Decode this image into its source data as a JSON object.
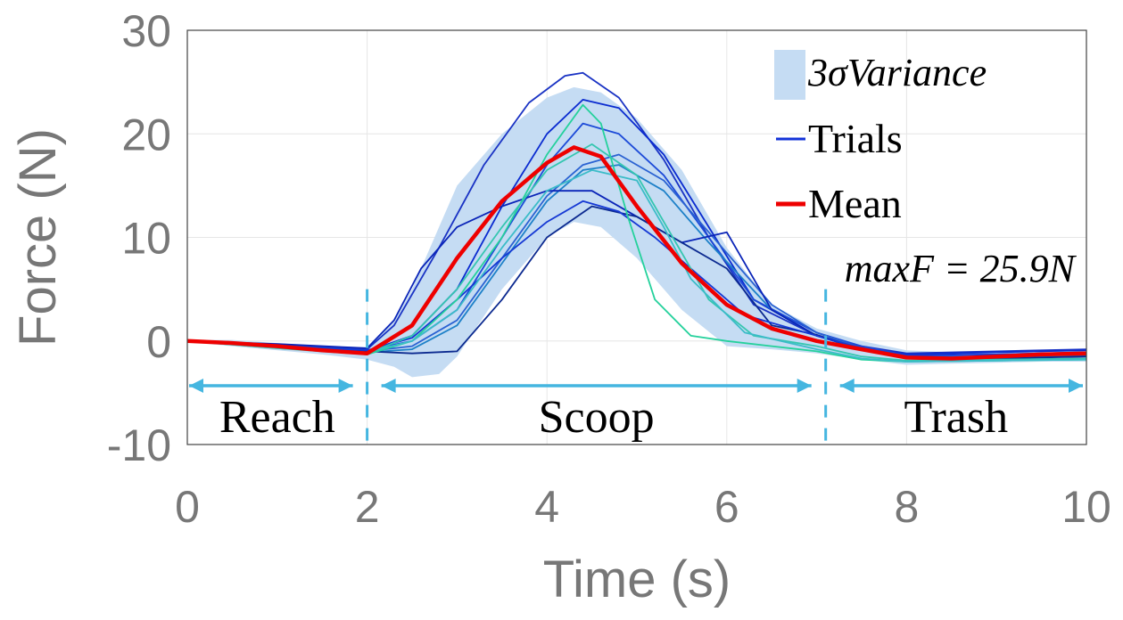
{
  "chart_data": {
    "type": "line",
    "xlabel": "Time (s)",
    "ylabel": "Force (N)",
    "xlim": [
      0,
      10
    ],
    "ylim": [
      -10,
      30
    ],
    "x_ticks": [
      "0",
      "2",
      "4",
      "6",
      "8",
      "10"
    ],
    "y_ticks": [
      "30",
      "20",
      "10",
      "0",
      "-10"
    ],
    "grid": true,
    "legend_position": "top-right",
    "legend": [
      {
        "label": "3σVariance",
        "kind": "band",
        "color": "#c5dcf3"
      },
      {
        "label": "Trials",
        "kind": "line",
        "color": "#1232d8"
      },
      {
        "label": "Mean",
        "kind": "line",
        "color": "#ee0000"
      }
    ],
    "annotation": "maxF = 25.9N",
    "phase_boundaries": [
      2.0,
      7.1
    ],
    "phases": [
      {
        "label": "Reach",
        "start": 0,
        "end": 2.0
      },
      {
        "label": "Scoop",
        "start": 2.0,
        "end": 7.1
      },
      {
        "label": "Trash",
        "start": 7.1,
        "end": 10
      }
    ],
    "mean_series": {
      "x": [
        0,
        0.5,
        1,
        1.5,
        2,
        2.5,
        3,
        3.5,
        4,
        4.3,
        4.6,
        5,
        5.5,
        6,
        6.5,
        7,
        7.5,
        8,
        8.5,
        9,
        9.5,
        10
      ],
      "y": [
        0,
        -0.2,
        -0.5,
        -0.9,
        -1.2,
        1.5,
        8,
        13.5,
        17.2,
        18.7,
        17.8,
        13,
        7.5,
        3.5,
        1.2,
        0,
        -0.8,
        -1.6,
        -1.7,
        -1.5,
        -1.3,
        -1.2
      ]
    },
    "variance_band": {
      "x": [
        0,
        0.5,
        1,
        1.5,
        2,
        2.3,
        2.5,
        2.8,
        3,
        3.5,
        4,
        4.3,
        4.6,
        5,
        5.5,
        6,
        6.5,
        7,
        7.5,
        8,
        8.5,
        9,
        9.5,
        10
      ],
      "upper": [
        0.1,
        0.1,
        -0.2,
        -0.5,
        -0.6,
        2,
        5,
        11,
        15,
        20,
        23.5,
        24.5,
        24,
        21.5,
        16.5,
        9,
        3.5,
        1.2,
        0,
        -0.9,
        -1.1,
        -1,
        -0.9,
        -0.8
      ],
      "lower": [
        -0.1,
        -0.5,
        -0.9,
        -1.3,
        -1.8,
        -2.5,
        -3.5,
        -3.2,
        -1.5,
        5,
        10,
        11.5,
        11,
        8,
        3,
        -0.5,
        -0.8,
        -1.2,
        -1.8,
        -2.3,
        -2.2,
        -2.1,
        -2,
        -2
      ]
    },
    "trials": [
      {
        "color": "#1a33c4",
        "x": [
          0,
          1,
          2,
          2.3,
          2.8,
          3.3,
          3.8,
          4.2,
          4.4,
          4.8,
          5.3,
          5.8,
          6.3,
          7,
          7.5,
          8,
          9,
          10
        ],
        "y": [
          0,
          -0.4,
          -0.8,
          1.5,
          9,
          17,
          23,
          25.6,
          25.9,
          23.5,
          17.5,
          10,
          3.5,
          0.5,
          -0.5,
          -1.2,
          -1,
          -0.8
        ]
      },
      {
        "color": "#0a2bd0",
        "x": [
          0,
          1,
          2,
          2.5,
          3,
          3.5,
          4,
          4.4,
          4.8,
          5.3,
          5.8,
          6.3,
          7,
          7.5,
          8,
          9,
          10
        ],
        "y": [
          0,
          -0.5,
          -1,
          0.5,
          5,
          13,
          20,
          23.3,
          22.5,
          18,
          11,
          4,
          0.5,
          -0.6,
          -1.3,
          -1.1,
          -0.9
        ]
      },
      {
        "color": "#1d4bd8",
        "x": [
          0,
          1,
          2,
          2.5,
          3,
          3.5,
          4,
          4.4,
          4.8,
          5.3,
          5.8,
          6.3,
          7,
          7.5,
          8,
          9,
          10
        ],
        "y": [
          0,
          -0.4,
          -0.9,
          0,
          3,
          10,
          17,
          21,
          20,
          16,
          10,
          4,
          0.8,
          -0.5,
          -1.4,
          -1.3,
          -1.1
        ]
      },
      {
        "color": "#2a62d2",
        "x": [
          0,
          1,
          2,
          2.5,
          3,
          3.5,
          4,
          4.4,
          4.8,
          5.3,
          5.8,
          6.5,
          7,
          7.5,
          8,
          9,
          10
        ],
        "y": [
          0,
          -0.5,
          -1,
          -0.5,
          2,
          8,
          14,
          17,
          18,
          15.5,
          10.5,
          3.5,
          0.8,
          -0.7,
          -1.5,
          -1.5,
          -1.3
        ]
      },
      {
        "color": "#1d80c8",
        "x": [
          0,
          1,
          2,
          2.5,
          3,
          3.5,
          4,
          4.4,
          4.8,
          5.3,
          5.8,
          6.5,
          7,
          7.5,
          8,
          9,
          10
        ],
        "y": [
          0,
          -0.6,
          -1.1,
          -0.8,
          1.5,
          7.5,
          13.5,
          16.5,
          17,
          14.5,
          9.5,
          3,
          0.5,
          -0.8,
          -1.6,
          -1.6,
          -1.4
        ]
      },
      {
        "color": "#0a24b8",
        "x": [
          0,
          1,
          2,
          2.3,
          2.6,
          3,
          3.5,
          4,
          4.5,
          5,
          5.5,
          6,
          6.5,
          7,
          7.5,
          8,
          9,
          10
        ],
        "y": [
          0,
          -0.3,
          -0.7,
          2,
          7,
          11,
          13,
          14.5,
          14.5,
          12,
          9.5,
          10.5,
          3,
          0.5,
          -0.8,
          -1.7,
          -1.8,
          -1.7
        ]
      },
      {
        "color": "#0c2a90",
        "x": [
          0,
          1,
          2,
          2.5,
          3,
          3.5,
          4,
          4.5,
          5,
          5.5,
          6,
          6.5,
          7,
          7.5,
          8,
          9,
          10
        ],
        "y": [
          0,
          -0.6,
          -1,
          -1.2,
          -1,
          4,
          10,
          13,
          12,
          9.5,
          7,
          1.5,
          0.6,
          -0.8,
          -1.5,
          -1.7,
          -1.5
        ]
      },
      {
        "color": "#1538d4",
        "x": [
          0,
          1,
          2,
          2.5,
          3,
          3.5,
          4,
          4.4,
          4.8,
          5.2,
          5.6,
          6.2,
          7,
          7.5,
          8,
          9,
          10
        ],
        "y": [
          0,
          -0.5,
          -0.9,
          0.3,
          4,
          8,
          11.5,
          13.5,
          12.5,
          10,
          7,
          2.5,
          0.5,
          -0.7,
          -1.4,
          -1.3,
          -1.1
        ]
      },
      {
        "color": "#25d19c",
        "x": [
          0,
          1,
          2,
          2.5,
          3,
          3.5,
          4,
          4.4,
          4.6,
          4.9,
          5.2,
          5.6,
          6,
          6.5,
          7,
          7.5,
          8,
          9,
          10
        ],
        "y": [
          0,
          -0.7,
          -1.3,
          0,
          4,
          10,
          18,
          22.8,
          21,
          12,
          4,
          0.5,
          0,
          -0.5,
          -1,
          -1.8,
          -2,
          -1.9,
          -1.8
        ]
      },
      {
        "color": "#35c6b0",
        "x": [
          0,
          1,
          2,
          2.5,
          3,
          3.5,
          4,
          4.5,
          5,
          5.4,
          5.8,
          6.3,
          7,
          7.5,
          8,
          9,
          10
        ],
        "y": [
          0,
          -0.7,
          -1.2,
          0.5,
          5,
          11,
          16.5,
          19,
          16,
          10,
          4,
          0.5,
          -0.5,
          -1.5,
          -1.9,
          -1.8,
          -1.7
        ]
      },
      {
        "color": "#3bbcc8",
        "x": [
          0,
          1,
          2,
          2.5,
          3,
          3.5,
          4,
          4.5,
          5,
          5.3,
          5.6,
          6.2,
          7,
          7.5,
          8,
          9,
          10
        ],
        "y": [
          0,
          -0.6,
          -1.1,
          0,
          3,
          9,
          14.5,
          16.5,
          15.5,
          11,
          6,
          0.8,
          -0.8,
          -1.7,
          -2,
          -1.9,
          -1.8
        ]
      }
    ]
  }
}
